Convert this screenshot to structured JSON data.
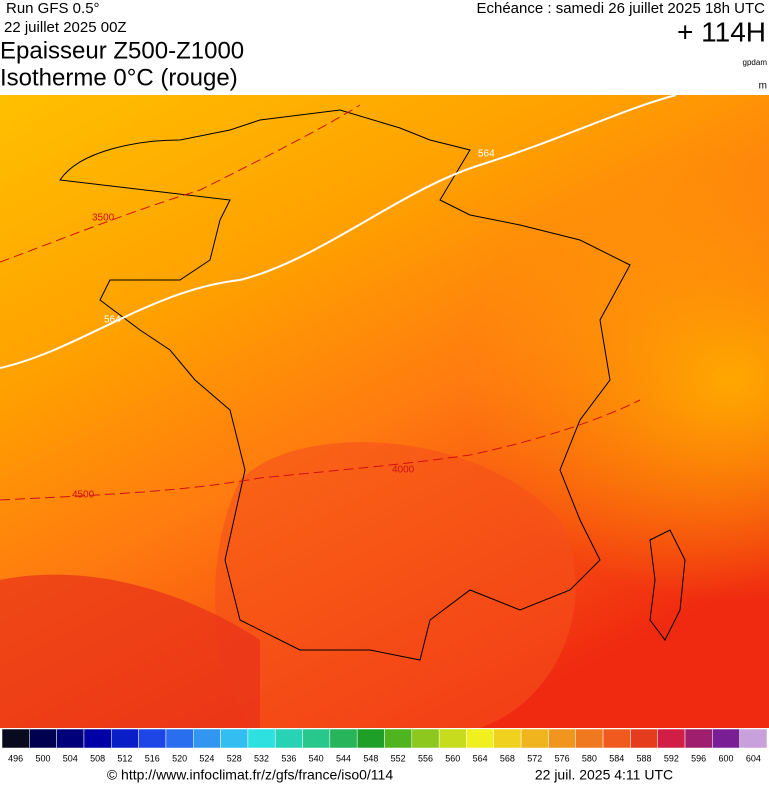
{
  "header": {
    "run": "Run GFS 0.5°",
    "date": "22 juillet 2025 00Z",
    "title1": "Epaisseur Z500-Z1000",
    "title2": "Isotherme 0°C (rouge)",
    "echeance": "Echéance : samedi 26 juillet 2025 18h UTC",
    "horizon": "+ 114H",
    "unit1": "gpdam",
    "unit2": "m"
  },
  "contours": {
    "thickness": [
      "564",
      "564"
    ],
    "isotherm": [
      "3500",
      "4500",
      "4000"
    ]
  },
  "scale": {
    "values": [
      496,
      500,
      504,
      508,
      512,
      516,
      520,
      524,
      528,
      532,
      536,
      540,
      544,
      548,
      552,
      556,
      560,
      564,
      568,
      572,
      576,
      580,
      584,
      588,
      592,
      596,
      600,
      604
    ],
    "colors": [
      "#0a0a1e",
      "#000050",
      "#00007a",
      "#0000a6",
      "#0a1ec8",
      "#1e46e6",
      "#2a6ef0",
      "#3296f0",
      "#32bef0",
      "#2ee0e0",
      "#28d2b4",
      "#28c88c",
      "#28b45a",
      "#1ea028",
      "#50b41e",
      "#8cc81e",
      "#c8dc1e",
      "#f0f01e",
      "#f0d21e",
      "#f0b41e",
      "#f0961e",
      "#f0781e",
      "#f05a1e",
      "#e63c1e",
      "#d21e46",
      "#a01e6e",
      "#7a1e96",
      "#c8a0dc"
    ]
  },
  "footer": {
    "url": "© http://www.infoclimat.fr/z/gfs/france/iso0/114",
    "stamp": "22 juil. 2025  4:11 UTC"
  }
}
